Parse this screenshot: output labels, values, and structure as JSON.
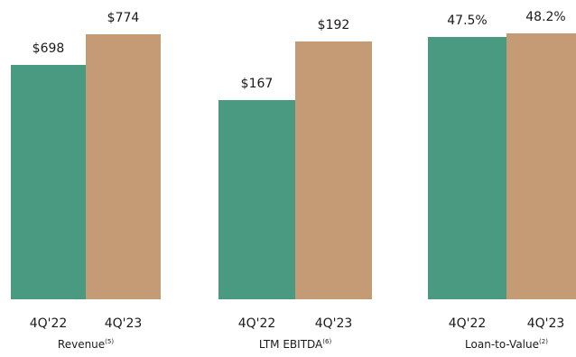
{
  "chart_data": [
    {
      "type": "bar",
      "title": "Revenue",
      "title_sup": "(5)",
      "categories": [
        "4Q'22",
        "4Q'23"
      ],
      "values": [
        698,
        774
      ],
      "value_labels": [
        "$698",
        "$774"
      ],
      "colors": [
        "#4a9a82",
        "#c49b75"
      ]
    },
    {
      "type": "bar",
      "title": "LTM EBITDA",
      "title_sup": "(6)",
      "categories": [
        "4Q'22",
        "4Q'23"
      ],
      "values": [
        167,
        192
      ],
      "value_labels": [
        "$167",
        "$192"
      ],
      "colors": [
        "#4a9a82",
        "#c49b75"
      ]
    },
    {
      "type": "bar",
      "title": "Loan-to-Value",
      "title_sup": "(2)",
      "categories": [
        "4Q'22",
        "4Q'23"
      ],
      "values": [
        47.5,
        48.2
      ],
      "value_labels": [
        "47.5%",
        "48.2%"
      ],
      "colors": [
        "#4a9a82",
        "#c49b75"
      ]
    }
  ]
}
